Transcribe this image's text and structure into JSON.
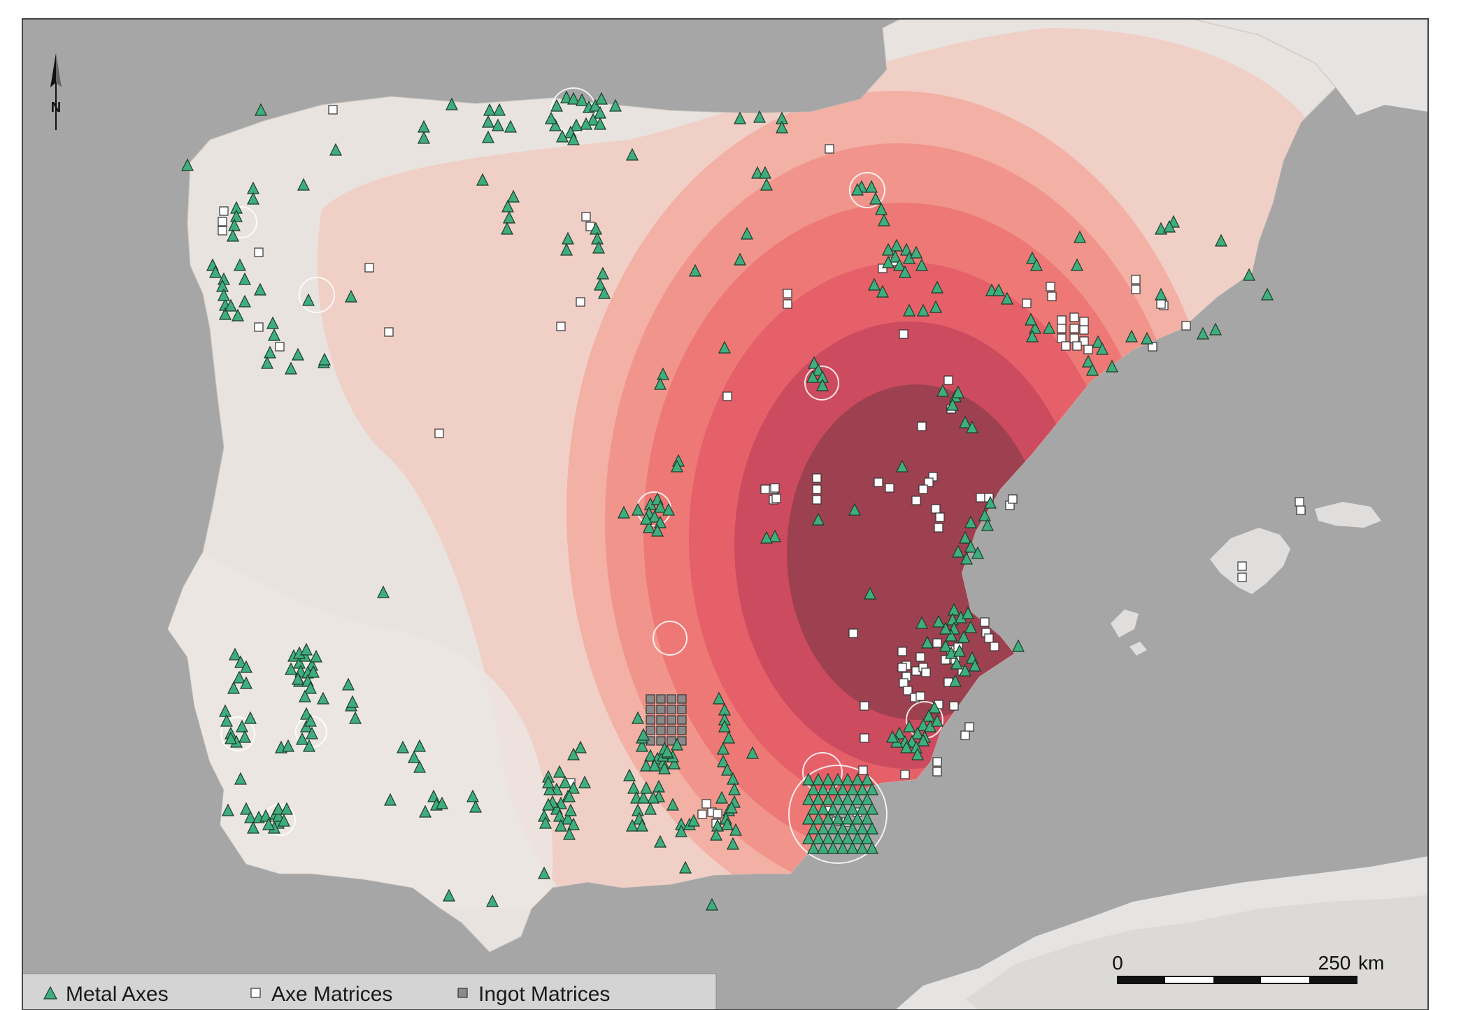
{
  "map": {
    "north_label": "N",
    "legend": {
      "metal_axes": "Metal Axes",
      "axe_matrices": "Axe Matrices",
      "ingot_matrices": "Ingot Matrices"
    },
    "scale": {
      "start": "0",
      "end": "250",
      "unit": "km"
    },
    "colors": {
      "sea": "#a6a6a6",
      "land": "#e8e3df",
      "axe_fill": "#3fae7e",
      "density_low": "#f2cfc7",
      "density_high": "#7d3a4f"
    }
  }
}
